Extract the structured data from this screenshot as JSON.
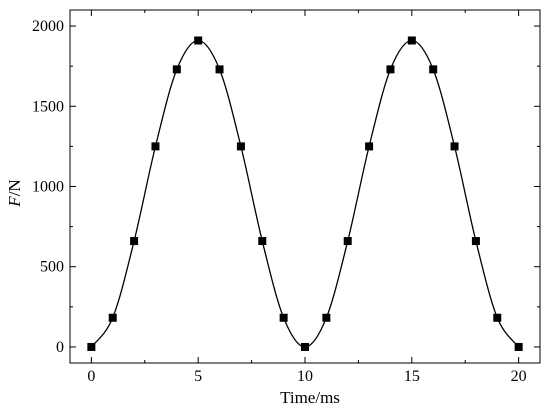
{
  "chart_data": {
    "type": "line",
    "xlabel": "Time/ms",
    "ylabel_italic": "F",
    "ylabel_rest": "/N",
    "xlim": [
      -1,
      21
    ],
    "ylim": [
      -100,
      2100
    ],
    "xticks": [
      0,
      5,
      10,
      15,
      20
    ],
    "yticks": [
      0,
      500,
      1000,
      1500,
      2000
    ],
    "grid": false,
    "series": [
      {
        "marker": "square",
        "color": "#000000",
        "x": [
          0,
          1,
          2,
          3,
          4,
          5,
          6,
          7,
          8,
          9,
          10,
          11,
          12,
          13,
          14,
          15,
          16,
          17,
          18,
          19,
          20
        ],
        "y": [
          0,
          182,
          660,
          1250,
          1730,
          1910,
          1730,
          1250,
          660,
          182,
          0,
          182,
          660,
          1250,
          1730,
          1910,
          1730,
          1250,
          660,
          182,
          0
        ]
      }
    ]
  }
}
